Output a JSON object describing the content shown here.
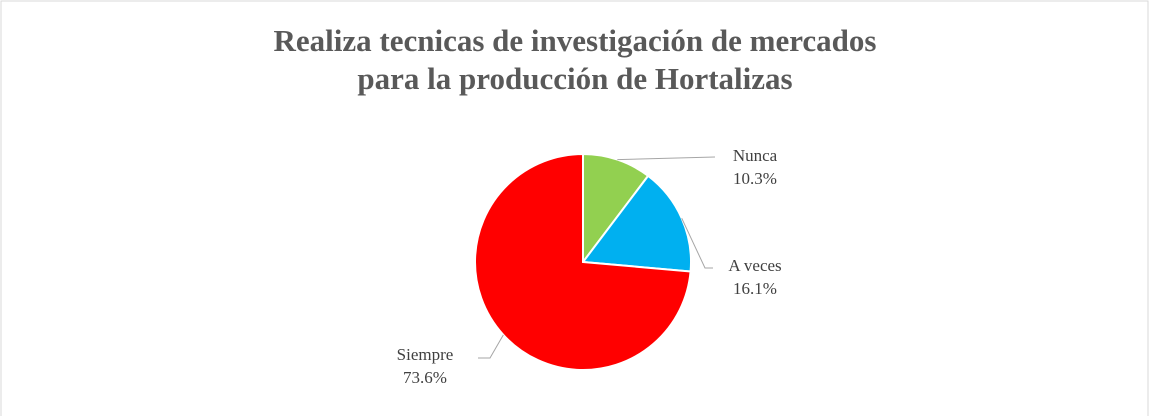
{
  "chart_data": {
    "type": "pie",
    "title": [
      "Realiza tecnicas de investigación de mercados",
      "para la producción de Hortalizas"
    ],
    "categories": [
      "Nunca",
      "A veces",
      "Siempre"
    ],
    "values": [
      10.3,
      16.1,
      73.6
    ],
    "value_labels": [
      "10.3%",
      "16.1%",
      "73.6%"
    ],
    "colors": [
      "#92d050",
      "#00b0f0",
      "#ff0000"
    ]
  }
}
